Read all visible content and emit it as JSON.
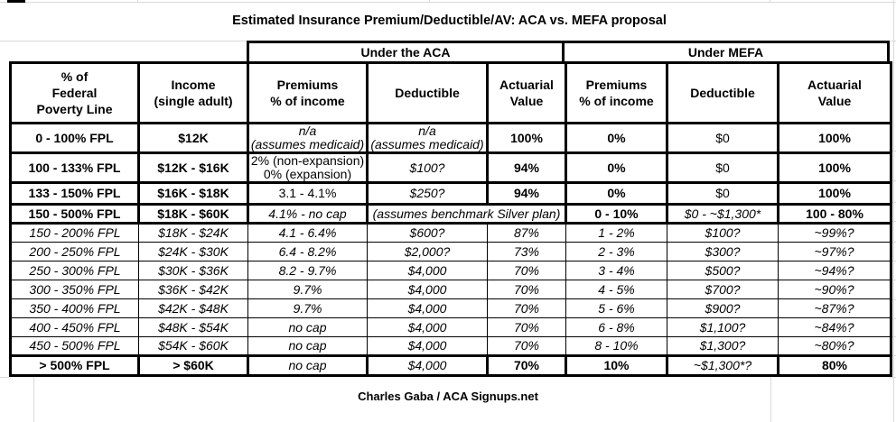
{
  "title": "Estimated Insurance Premium/Deductible/AV: ACA vs. MEFA proposal",
  "footer": "Charles Gaba / ACA Signups.net",
  "groups": {
    "aca": "Under the ACA",
    "mefa": "Under MEFA"
  },
  "colors": {
    "border": "#000000",
    "gridline": "#d9d9d9",
    "text": "#000000",
    "background": "#ffffff"
  },
  "columns": [
    [
      "% of",
      "Federal",
      "Poverty Line"
    ],
    [
      "Income",
      "(single adult)"
    ],
    [
      "Premiums",
      "% of income"
    ],
    [
      "Deductible"
    ],
    [
      "Actuarial",
      "Value"
    ],
    [
      "Premiums",
      "% of income"
    ],
    [
      "Deductible"
    ],
    [
      "Actuarial",
      "Value"
    ]
  ],
  "rows": [
    {
      "kind": "summary",
      "cells": [
        {
          "lines": [
            "0 - 100% FPL"
          ],
          "b": true,
          "align": "right"
        },
        {
          "lines": [
            "$12K"
          ],
          "b": true
        },
        {
          "lines": [
            "n/a",
            "(assumes medicaid)"
          ],
          "em": true,
          "small": true
        },
        {
          "lines": [
            "n/a",
            "(assumes medicaid)"
          ],
          "em": true,
          "small": true
        },
        {
          "lines": [
            "100%"
          ],
          "b": true
        },
        {
          "lines": [
            "0%"
          ],
          "b": true
        },
        {
          "lines": [
            "$0"
          ]
        },
        {
          "lines": [
            "100%"
          ],
          "b": true
        }
      ]
    },
    {
      "kind": "summary",
      "cells": [
        {
          "lines": [
            "100 - 133% FPL"
          ],
          "b": true,
          "align": "right"
        },
        {
          "lines": [
            "$12K - $16K"
          ],
          "b": true
        },
        {
          "lines": [
            "2% (non-expansion)",
            "0% (expansion)"
          ],
          "small": true
        },
        {
          "lines": [
            "$100?"
          ],
          "em": true
        },
        {
          "lines": [
            "94%"
          ],
          "b": true
        },
        {
          "lines": [
            "0%"
          ],
          "b": true
        },
        {
          "lines": [
            "$0"
          ]
        },
        {
          "lines": [
            "100%"
          ],
          "b": true
        }
      ]
    },
    {
      "kind": "summary",
      "cells": [
        {
          "lines": [
            "133 - 150% FPL"
          ],
          "b": true,
          "align": "right"
        },
        {
          "lines": [
            "$16K - $18K"
          ],
          "b": true
        },
        {
          "lines": [
            "3.1 - 4.1%"
          ]
        },
        {
          "lines": [
            "$250?"
          ],
          "em": true
        },
        {
          "lines": [
            "94%"
          ],
          "b": true
        },
        {
          "lines": [
            "0%"
          ],
          "b": true
        },
        {
          "lines": [
            "$0"
          ]
        },
        {
          "lines": [
            "100%"
          ],
          "b": true
        }
      ]
    },
    {
      "kind": "summary",
      "cells": [
        {
          "lines": [
            "150 - 500% FPL"
          ],
          "b": true,
          "align": "right"
        },
        {
          "lines": [
            "$18K - $60K"
          ],
          "b": true
        },
        {
          "lines": [
            "4.1% - no cap"
          ],
          "em": true
        },
        {
          "lines": [
            "(assumes benchmark Silver plan)"
          ],
          "em": true,
          "md": true,
          "colspan": 2
        },
        {
          "lines": [
            "0 - 10%"
          ],
          "b": true
        },
        {
          "lines": [
            "$0 - ~$1,300*"
          ],
          "em": true
        },
        {
          "lines": [
            "100 - 80%"
          ],
          "b": true
        }
      ]
    },
    {
      "kind": "detail",
      "cells": [
        {
          "lines": [
            "150 - 200% FPL"
          ]
        },
        {
          "lines": [
            "$18K - $24K"
          ]
        },
        {
          "lines": [
            "4.1 - 6.4%"
          ]
        },
        {
          "lines": [
            "$600?"
          ]
        },
        {
          "lines": [
            "87%"
          ]
        },
        {
          "lines": [
            "1 - 2%"
          ]
        },
        {
          "lines": [
            "$100?"
          ]
        },
        {
          "lines": [
            "~99%?"
          ]
        }
      ]
    },
    {
      "kind": "detail",
      "cells": [
        {
          "lines": [
            "200 - 250% FPL"
          ]
        },
        {
          "lines": [
            "$24K - $30K"
          ]
        },
        {
          "lines": [
            "6.4 - 8.2%"
          ]
        },
        {
          "lines": [
            "$2,000?"
          ]
        },
        {
          "lines": [
            "73%"
          ]
        },
        {
          "lines": [
            "2 - 3%"
          ]
        },
        {
          "lines": [
            "$300?"
          ]
        },
        {
          "lines": [
            "~97%?"
          ]
        }
      ]
    },
    {
      "kind": "detail",
      "cells": [
        {
          "lines": [
            "250 - 300% FPL"
          ]
        },
        {
          "lines": [
            "$30K - $36K"
          ]
        },
        {
          "lines": [
            "8.2 - 9.7%"
          ]
        },
        {
          "lines": [
            "$4,000"
          ]
        },
        {
          "lines": [
            "70%"
          ]
        },
        {
          "lines": [
            "3 - 4%"
          ]
        },
        {
          "lines": [
            "$500?"
          ]
        },
        {
          "lines": [
            "~94%?"
          ]
        }
      ]
    },
    {
      "kind": "detail",
      "cells": [
        {
          "lines": [
            "300 - 350% FPL"
          ]
        },
        {
          "lines": [
            "$36K - $42K"
          ]
        },
        {
          "lines": [
            "9.7%"
          ]
        },
        {
          "lines": [
            "$4,000"
          ]
        },
        {
          "lines": [
            "70%"
          ]
        },
        {
          "lines": [
            "4 - 5%"
          ]
        },
        {
          "lines": [
            "$700?"
          ]
        },
        {
          "lines": [
            "~90%?"
          ]
        }
      ]
    },
    {
      "kind": "detail",
      "cells": [
        {
          "lines": [
            "350 - 400% FPL"
          ]
        },
        {
          "lines": [
            "$42K - $48K"
          ]
        },
        {
          "lines": [
            "9.7%"
          ]
        },
        {
          "lines": [
            "$4,000"
          ]
        },
        {
          "lines": [
            "70%"
          ]
        },
        {
          "lines": [
            "5 - 6%"
          ]
        },
        {
          "lines": [
            "$900?"
          ]
        },
        {
          "lines": [
            "~87%?"
          ]
        }
      ]
    },
    {
      "kind": "detail",
      "cells": [
        {
          "lines": [
            "400 - 450% FPL"
          ]
        },
        {
          "lines": [
            "$48K - $54K"
          ]
        },
        {
          "lines": [
            "no cap"
          ]
        },
        {
          "lines": [
            "$4,000"
          ]
        },
        {
          "lines": [
            "70%"
          ]
        },
        {
          "lines": [
            "6 - 8%"
          ]
        },
        {
          "lines": [
            "$1,100?"
          ]
        },
        {
          "lines": [
            "~84%?"
          ]
        }
      ]
    },
    {
      "kind": "detail",
      "cells": [
        {
          "lines": [
            "450 - 500% FPL"
          ]
        },
        {
          "lines": [
            "$54K - $60K"
          ]
        },
        {
          "lines": [
            "no cap"
          ]
        },
        {
          "lines": [
            "$4,000"
          ]
        },
        {
          "lines": [
            "70%"
          ]
        },
        {
          "lines": [
            "8 - 10%"
          ]
        },
        {
          "lines": [
            "$1,300?"
          ]
        },
        {
          "lines": [
            "~80%?"
          ]
        }
      ]
    },
    {
      "kind": "summary",
      "cells": [
        {
          "lines": [
            "> 500% FPL"
          ],
          "b": true,
          "align": "right"
        },
        {
          "lines": [
            "> $60K"
          ],
          "b": true
        },
        {
          "lines": [
            "no cap"
          ],
          "em": true
        },
        {
          "lines": [
            "$4,000"
          ],
          "em": true
        },
        {
          "lines": [
            "70%"
          ],
          "b": true
        },
        {
          "lines": [
            "10%"
          ],
          "b": true
        },
        {
          "lines": [
            "~$1,300*?"
          ],
          "em": true
        },
        {
          "lines": [
            "80%"
          ],
          "b": true
        }
      ]
    }
  ]
}
